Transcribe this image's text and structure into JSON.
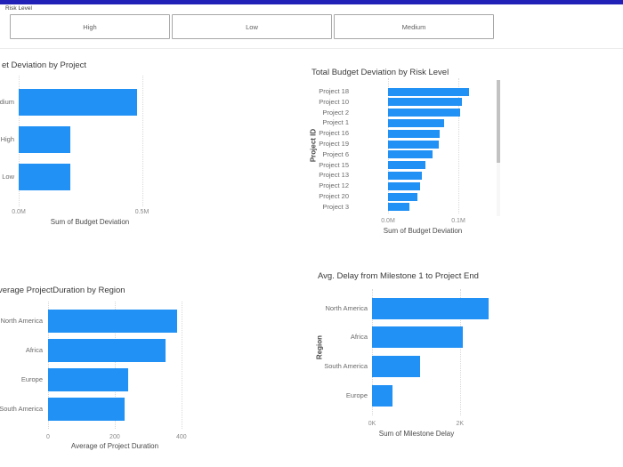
{
  "colors": {
    "accent_bar": "#2121b8",
    "bar": "#2191f5",
    "grid": "#d9d9d9"
  },
  "slicer": {
    "title": "Risk Level",
    "options": [
      {
        "label": "High"
      },
      {
        "label": "Low"
      },
      {
        "label": "Medium"
      }
    ]
  },
  "chart_data": [
    {
      "type": "bar",
      "orientation": "horizontal",
      "title": "et Deviation by Project",
      "categories": [
        "Medium",
        "High",
        "Low"
      ],
      "values": [
        0.48,
        0.21,
        0.21
      ],
      "value_unit": "M",
      "xlabel": "Sum of Budget Deviation",
      "x_ticks": [
        {
          "label": "0.0M",
          "value": 0
        },
        {
          "label": "0.5M",
          "value": 0.5
        }
      ],
      "xlim": [
        0,
        0.6
      ],
      "grid": "dotted-vertical",
      "legend": "none"
    },
    {
      "type": "bar",
      "orientation": "horizontal",
      "title": "Total Budget Deviation by Risk Level",
      "ylabel": "Project ID",
      "categories": [
        "Project 18",
        "Project 10",
        "Project 2",
        "Project 1",
        "Project 16",
        "Project 19",
        "Project 6",
        "Project 15",
        "Project 13",
        "Project 12",
        "Project 20",
        "Project 3"
      ],
      "values": [
        0.115,
        0.105,
        0.102,
        0.08,
        0.073,
        0.072,
        0.063,
        0.053,
        0.048,
        0.045,
        0.042,
        0.03
      ],
      "value_unit": "M",
      "xlabel": "Sum of Budget Deviation",
      "x_ticks": [
        {
          "label": "0.0M",
          "value": 0
        },
        {
          "label": "0.1M",
          "value": 0.1
        }
      ],
      "xlim": [
        0,
        0.13
      ],
      "grid": "dotted-vertical",
      "legend": "none",
      "has_scrollbar": true
    },
    {
      "type": "bar",
      "orientation": "horizontal",
      "title": "verage ProjectDuration by Region",
      "categories": [
        "North America",
        "Africa",
        "Europe",
        "South America"
      ],
      "values": [
        386,
        352,
        240,
        229
      ],
      "value_unit": "",
      "xlabel": "Average of Project Duration",
      "x_ticks": [
        {
          "label": "0",
          "value": 0
        },
        {
          "label": "200",
          "value": 200
        },
        {
          "label": "400",
          "value": 400
        }
      ],
      "xlim": [
        0,
        430
      ],
      "grid": "dotted-vertical",
      "legend": "none"
    },
    {
      "type": "bar",
      "orientation": "horizontal",
      "title": "Avg. Delay from Milestone 1 to Project End",
      "ylabel": "Region",
      "categories": [
        "North America",
        "Africa",
        "South America",
        "Europe"
      ],
      "values": [
        2.66,
        2.06,
        1.09,
        0.46
      ],
      "value_unit": "K",
      "xlabel": "Sum of Milestone Delay",
      "x_ticks": [
        {
          "label": "0K",
          "value": 0
        },
        {
          "label": "2K",
          "value": 2
        }
      ],
      "xlim": [
        0,
        2.9
      ],
      "grid": "dotted-vertical",
      "legend": "none"
    }
  ]
}
